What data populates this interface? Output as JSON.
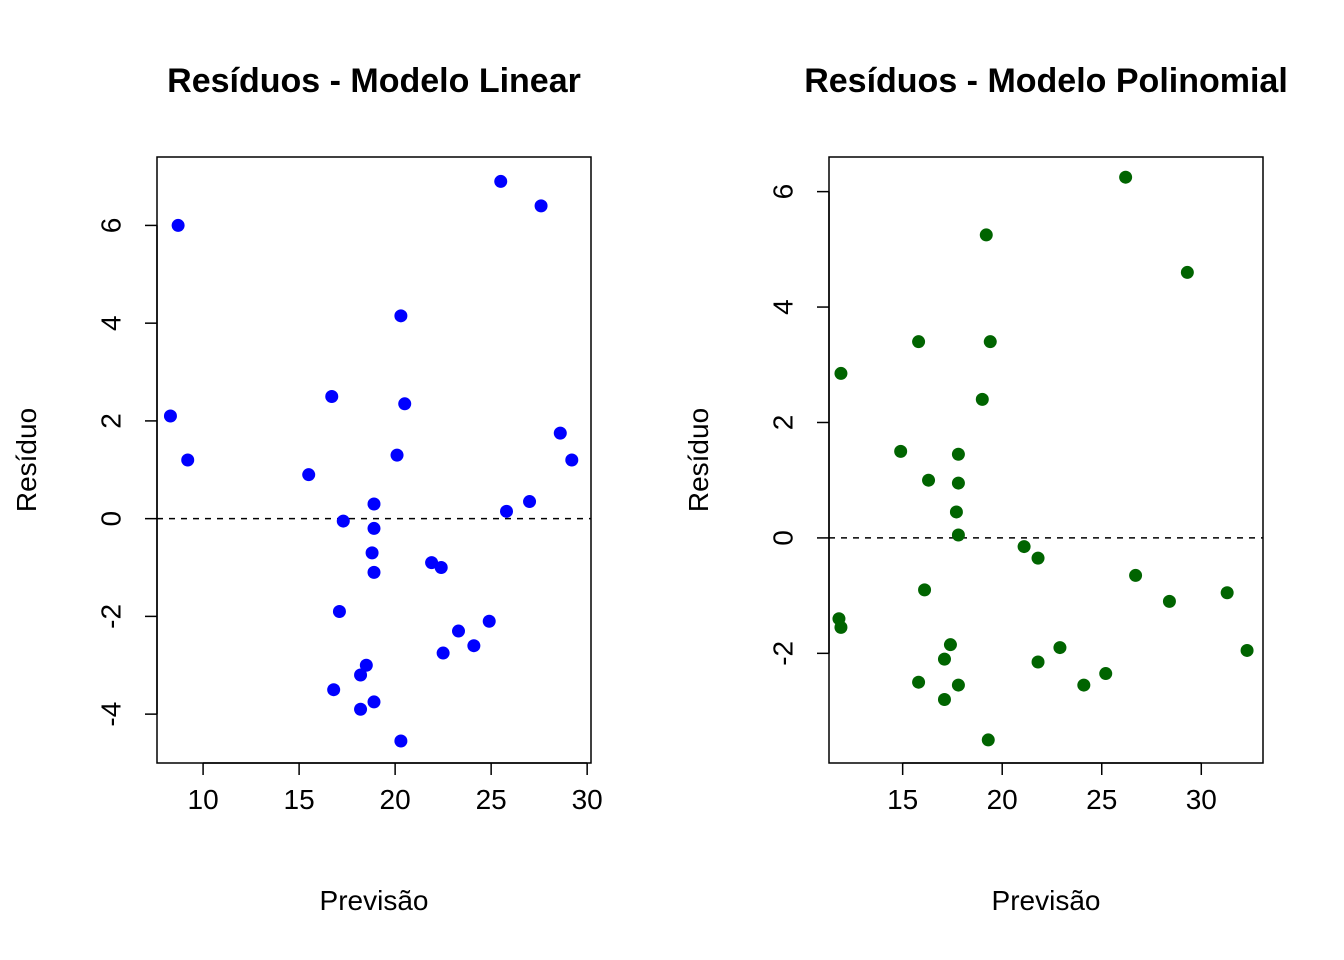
{
  "chart_data": [
    {
      "type": "scatter",
      "title": "Resíduos - Modelo Linear",
      "xlabel": "Previsão",
      "ylabel": "Resíduo",
      "xlim": [
        7.6,
        30.2
      ],
      "ylim": [
        -5.0,
        7.4
      ],
      "xticks": [
        10,
        15,
        20,
        25,
        30
      ],
      "yticks": [
        -4,
        -2,
        0,
        2,
        4,
        6
      ],
      "point_color": "#0000FF",
      "reference_line": 0,
      "points": [
        [
          8.7,
          6.0
        ],
        [
          8.3,
          2.1
        ],
        [
          9.2,
          1.2
        ],
        [
          15.5,
          0.9
        ],
        [
          16.7,
          2.5
        ],
        [
          16.8,
          -3.5
        ],
        [
          17.1,
          -1.9
        ],
        [
          17.3,
          -0.05
        ],
        [
          18.2,
          -3.2
        ],
        [
          18.2,
          -3.9
        ],
        [
          18.5,
          -3.0
        ],
        [
          18.8,
          -0.7
        ],
        [
          18.9,
          0.3
        ],
        [
          18.9,
          -0.2
        ],
        [
          18.9,
          -1.1
        ],
        [
          18.9,
          -3.75
        ],
        [
          20.1,
          1.3
        ],
        [
          20.3,
          4.15
        ],
        [
          20.3,
          -4.55
        ],
        [
          20.5,
          2.35
        ],
        [
          21.9,
          -0.9
        ],
        [
          22.4,
          -1.0
        ],
        [
          22.5,
          -2.75
        ],
        [
          23.3,
          -2.3
        ],
        [
          24.1,
          -2.6
        ],
        [
          24.9,
          -2.1
        ],
        [
          25.5,
          6.9
        ],
        [
          25.8,
          0.15
        ],
        [
          27.0,
          0.35
        ],
        [
          27.6,
          6.4
        ],
        [
          28.6,
          1.75
        ],
        [
          29.2,
          1.2
        ]
      ]
    },
    {
      "type": "scatter",
      "title": "Resíduos - Modelo Polinomial",
      "xlabel": "Previsão",
      "ylabel": "Resíduo",
      "xlim": [
        11.3,
        33.1
      ],
      "ylim": [
        -3.9,
        6.6
      ],
      "xticks": [
        15,
        20,
        25,
        30
      ],
      "yticks": [
        -2,
        0,
        2,
        4,
        6
      ],
      "point_color": "#006400",
      "reference_line": 0,
      "points": [
        [
          11.9,
          2.85
        ],
        [
          11.8,
          -1.4
        ],
        [
          11.9,
          -1.55
        ],
        [
          14.9,
          1.5
        ],
        [
          15.8,
          3.4
        ],
        [
          15.8,
          -2.5
        ],
        [
          16.1,
          -0.9
        ],
        [
          16.3,
          1.0
        ],
        [
          17.1,
          -2.1
        ],
        [
          17.1,
          -2.8
        ],
        [
          17.4,
          -1.85
        ],
        [
          17.7,
          0.45
        ],
        [
          17.8,
          1.45
        ],
        [
          17.8,
          0.95
        ],
        [
          17.8,
          0.05
        ],
        [
          17.8,
          -2.55
        ],
        [
          19.0,
          2.4
        ],
        [
          19.2,
          5.25
        ],
        [
          19.3,
          -3.5
        ],
        [
          19.4,
          3.4
        ],
        [
          21.1,
          -0.15
        ],
        [
          21.8,
          -0.35
        ],
        [
          21.8,
          -2.15
        ],
        [
          22.9,
          -1.9
        ],
        [
          24.1,
          -2.55
        ],
        [
          25.2,
          -2.35
        ],
        [
          26.2,
          6.25
        ],
        [
          26.7,
          -0.65
        ],
        [
          28.4,
          -1.1
        ],
        [
          29.3,
          4.6
        ],
        [
          31.3,
          -0.95
        ],
        [
          32.3,
          -1.95
        ]
      ]
    }
  ]
}
